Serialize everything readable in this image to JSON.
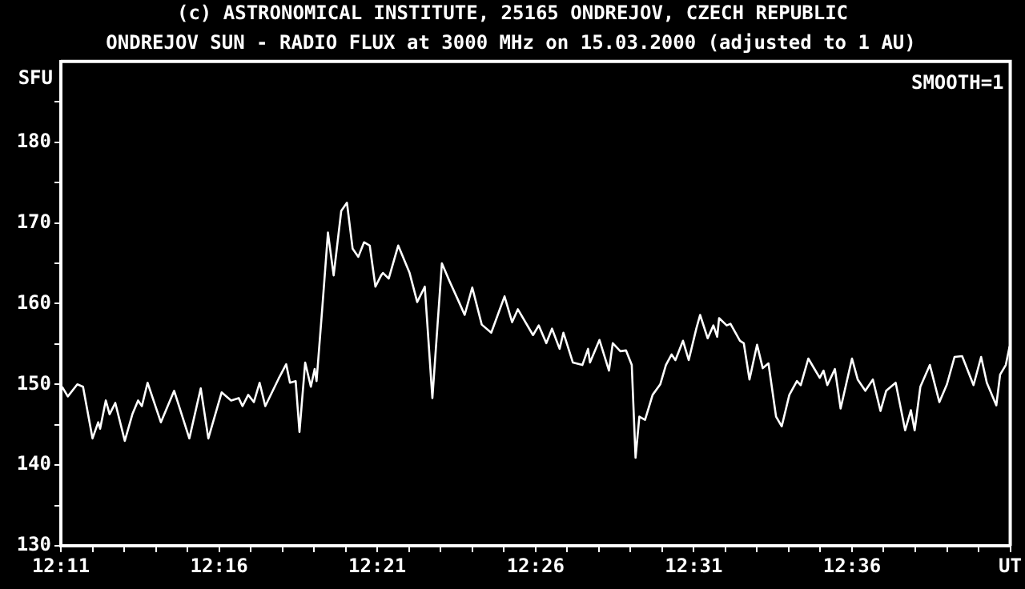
{
  "chart_data": {
    "type": "line",
    "title": "ONDREJOV SUN - RADIO FLUX at 3000 MHz on 15.03.2000 (adjusted to 1 AU)",
    "ylabel": "SFU",
    "annotations": [
      "(c) ASTRONOMICAL INSTITUTE, 25165 ONDREJOV, CZECH REPUBLIC",
      "SMOOTH=1"
    ],
    "x": [
      12.184,
      12.187,
      12.192,
      12.195,
      12.2,
      12.203,
      12.204,
      12.207,
      12.209,
      12.212,
      12.217,
      12.221,
      12.224,
      12.226,
      12.229,
      12.236,
      12.243,
      12.251,
      12.257,
      12.261,
      12.268,
      12.273,
      12.277,
      12.279,
      12.282,
      12.285,
      12.288,
      12.291,
      12.298,
      12.302,
      12.304,
      12.307,
      12.309,
      12.312,
      12.315,
      12.317,
      12.318,
      12.321,
      12.324,
      12.327,
      12.331,
      12.334,
      12.337,
      12.34,
      12.343,
      12.346,
      12.349,
      12.352,
      12.353,
      12.356,
      12.361,
      12.367,
      12.371,
      12.375,
      12.379,
      12.384,
      12.388,
      12.393,
      12.396,
      12.4,
      12.405,
      12.41,
      12.417,
      12.421,
      12.424,
      12.432,
      12.435,
      12.439,
      12.442,
      12.446,
      12.448,
      12.453,
      12.458,
      12.461,
      12.462,
      12.467,
      12.472,
      12.474,
      12.478,
      12.481,
      12.484,
      12.486,
      12.488,
      12.491,
      12.495,
      12.499,
      12.502,
      12.505,
      12.507,
      12.511,
      12.514,
      12.518,
      12.52,
      12.524,
      12.527,
      12.529,
      12.53,
      12.534,
      12.536,
      12.541,
      12.543,
      12.546,
      12.55,
      12.553,
      12.556,
      12.56,
      12.563,
      12.567,
      12.571,
      12.573,
      12.577,
      12.583,
      12.585,
      12.587,
      12.591,
      12.594,
      12.6,
      12.603,
      12.607,
      12.611,
      12.615,
      12.618,
      12.623,
      12.628,
      12.631,
      12.633,
      12.636,
      12.641,
      12.646,
      12.65,
      12.654,
      12.658,
      12.664,
      12.668,
      12.671,
      12.676,
      12.678,
      12.681,
      12.683
    ],
    "series": [
      {
        "color": "#ffffff",
        "values": [
          149.7,
          148.5,
          150.0,
          149.7,
          143.3,
          145.3,
          144.5,
          148.0,
          146.3,
          147.7,
          143.0,
          146.3,
          148.0,
          147.3,
          150.2,
          145.3,
          149.2,
          143.3,
          149.5,
          143.3,
          149.0,
          148.0,
          148.3,
          147.3,
          148.7,
          147.8,
          150.2,
          147.3,
          150.7,
          152.5,
          150.2,
          150.4,
          144.1,
          152.7,
          149.7,
          151.9,
          150.4,
          159.4,
          168.8,
          163.5,
          171.5,
          172.5,
          166.8,
          165.8,
          167.6,
          167.2,
          162.1,
          163.5,
          163.8,
          163.1,
          167.2,
          163.8,
          160.2,
          162.1,
          148.3,
          165.0,
          162.8,
          160.2,
          158.6,
          162.0,
          157.4,
          156.4,
          160.9,
          157.7,
          159.3,
          156.1,
          157.3,
          155.1,
          156.9,
          154.4,
          156.4,
          152.7,
          152.4,
          154.4,
          152.7,
          155.5,
          151.7,
          155.1,
          154.1,
          154.2,
          152.4,
          140.9,
          146.0,
          145.6,
          148.7,
          150.0,
          152.4,
          153.7,
          153.0,
          155.4,
          153.0,
          156.9,
          158.6,
          155.7,
          157.3,
          155.9,
          158.2,
          157.3,
          157.5,
          155.4,
          155.1,
          150.6,
          154.9,
          152.0,
          152.6,
          146.0,
          144.8,
          148.7,
          150.4,
          149.9,
          153.2,
          150.8,
          151.7,
          149.9,
          151.9,
          147.0,
          153.2,
          150.6,
          149.2,
          150.6,
          146.7,
          149.2,
          150.2,
          144.3,
          146.8,
          144.3,
          149.7,
          152.4,
          147.8,
          150.0,
          153.4,
          153.5,
          149.9,
          153.4,
          150.2,
          147.4,
          151.2,
          152.4,
          154.7
        ]
      }
    ],
    "xlim": [
      12.18333,
      12.68333
    ],
    "xticks": [
      {
        "value": 12.18333,
        "label": "12:11"
      },
      {
        "value": 12.2,
        "label": null
      },
      {
        "value": 12.21667,
        "label": null
      },
      {
        "value": 12.23333,
        "label": null
      },
      {
        "value": 12.25,
        "label": null
      },
      {
        "value": 12.26667,
        "label": "12:16"
      },
      {
        "value": 12.28333,
        "label": null
      },
      {
        "value": 12.3,
        "label": null
      },
      {
        "value": 12.31667,
        "label": null
      },
      {
        "value": 12.33333,
        "label": null
      },
      {
        "value": 12.35,
        "label": "12:21"
      },
      {
        "value": 12.36667,
        "label": null
      },
      {
        "value": 12.38333,
        "label": null
      },
      {
        "value": 12.4,
        "label": null
      },
      {
        "value": 12.41667,
        "label": null
      },
      {
        "value": 12.43333,
        "label": "12:26"
      },
      {
        "value": 12.45,
        "label": null
      },
      {
        "value": 12.46667,
        "label": null
      },
      {
        "value": 12.48333,
        "label": null
      },
      {
        "value": 12.5,
        "label": null
      },
      {
        "value": 12.51667,
        "label": "12:31"
      },
      {
        "value": 12.53333,
        "label": null
      },
      {
        "value": 12.55,
        "label": null
      },
      {
        "value": 12.56667,
        "label": null
      },
      {
        "value": 12.58333,
        "label": null
      },
      {
        "value": 12.6,
        "label": "12:36"
      },
      {
        "value": 12.61667,
        "label": null
      },
      {
        "value": 12.63333,
        "label": null
      },
      {
        "value": 12.65,
        "label": null
      },
      {
        "value": 12.66667,
        "label": null
      },
      {
        "value": 12.68333,
        "label": "UT"
      }
    ],
    "ylim": [
      130,
      190
    ],
    "yticks": [
      130,
      {
        "value": 135,
        "label": null
      },
      140,
      {
        "value": 145,
        "label": null
      },
      150,
      {
        "value": 155,
        "label": null
      },
      160,
      {
        "value": 165,
        "label": null
      },
      170,
      {
        "value": 175,
        "label": null
      },
      180,
      {
        "value": 185,
        "label": null
      }
    ]
  }
}
